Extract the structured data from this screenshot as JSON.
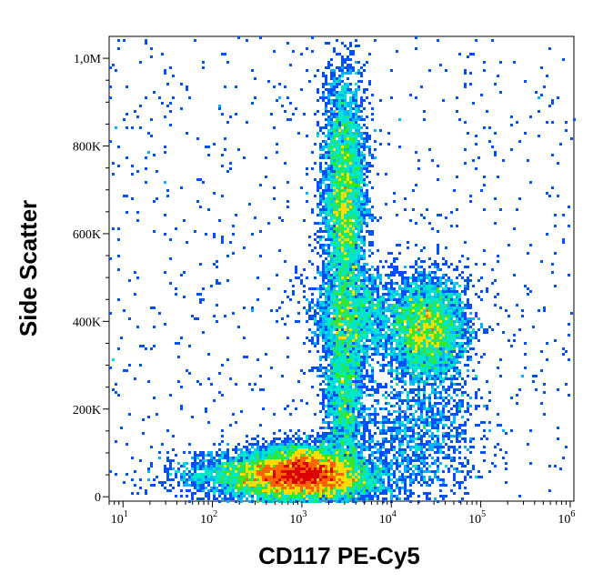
{
  "chart_data": {
    "type": "scatter",
    "subtype": "flow-cytometry-density-plot",
    "xlabel": "CD117 PE-Cy5",
    "ylabel": "Side Scatter",
    "x_scale": "log",
    "xlim": [
      7,
      1100000
    ],
    "ylim": [
      -10000,
      1050000
    ],
    "x_ticks": [
      {
        "base": "10",
        "exp": "1",
        "value": 10
      },
      {
        "base": "10",
        "exp": "2",
        "value": 100
      },
      {
        "base": "10",
        "exp": "3",
        "value": 1000
      },
      {
        "base": "10",
        "exp": "4",
        "value": 10000
      },
      {
        "base": "10",
        "exp": "5",
        "value": 100000
      },
      {
        "base": "10",
        "exp": "6",
        "value": 1000000
      }
    ],
    "y_ticks": [
      {
        "label": "0",
        "value": 0
      },
      {
        "label": "200K",
        "value": 200000
      },
      {
        "label": "400K",
        "value": 400000
      },
      {
        "label": "600K",
        "value": 600000
      },
      {
        "label": "800K",
        "value": 800000
      },
      {
        "label": "1,0M",
        "value": 1000000
      }
    ],
    "grid": false,
    "populations": [
      {
        "x": 1000,
        "y": 60000,
        "sx": 0.28,
        "sy": 30000,
        "n": 5000
      },
      {
        "x": 1100,
        "y": 40000,
        "sx": 0.45,
        "sy": 25000,
        "n": 5000
      },
      {
        "x": 3000,
        "y": 680000,
        "sx": 0.12,
        "sy": 140000,
        "n": 4500
      },
      {
        "x": 3000,
        "y": 250000,
        "sx": 0.12,
        "sy": 120000,
        "n": 2500
      },
      {
        "x": 25000,
        "y": 380000,
        "sx": 0.22,
        "sy": 60000,
        "n": 4000
      },
      {
        "x": 4000,
        "y": 420000,
        "sx": 0.25,
        "sy": 50000,
        "n": 1500
      },
      {
        "x": 20000,
        "y": 150000,
        "sx": 0.35,
        "sy": 80000,
        "n": 1200
      },
      {
        "x": 200,
        "y": 50000,
        "sx": 0.4,
        "sy": 25000,
        "n": 1200
      }
    ],
    "density_colors": [
      "#0000c8",
      "#0050ff",
      "#00b4ff",
      "#00e6c8",
      "#32e632",
      "#ffdc00",
      "#ff6400",
      "#dc0000"
    ]
  }
}
